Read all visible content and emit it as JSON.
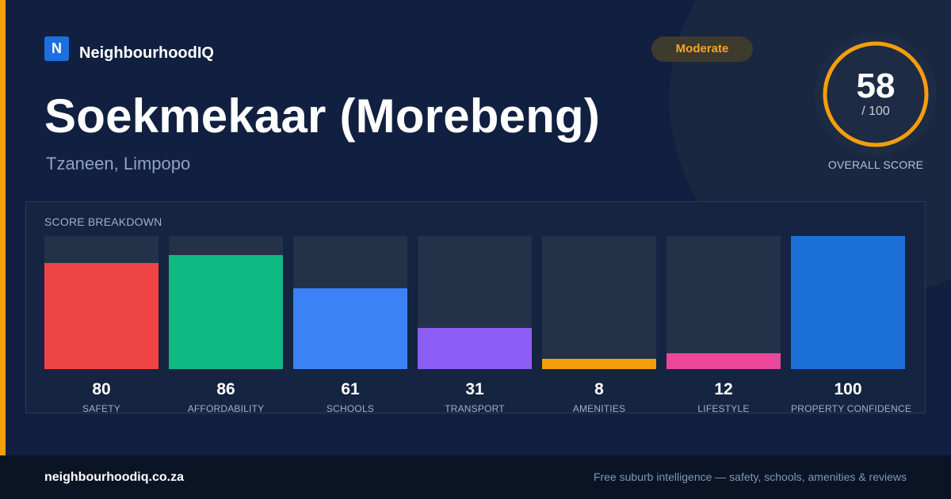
{
  "brand": {
    "logo_letter": "N",
    "name": "NeighbourhoodIQ"
  },
  "location": {
    "title": "Soekmekaar (Morebeng)",
    "subtitle": "Tzaneen, Limpopo"
  },
  "badge": {
    "label": "Moderate",
    "color": "#f5a524"
  },
  "overall_score": {
    "value": "58",
    "denominator": "/ 100",
    "label": "OVERALL SCORE",
    "ring_color": "#f59e0b",
    "fraction": 0.58
  },
  "breakdown": {
    "title": "SCORE BREAKDOWN",
    "items": [
      {
        "value": "80",
        "label": "SAFETY",
        "color": "#ef4444",
        "fraction": 0.8
      },
      {
        "value": "86",
        "label": "AFFORDABILITY",
        "color": "#10b981",
        "fraction": 0.86
      },
      {
        "value": "61",
        "label": "SCHOOLS",
        "color": "#3b82f6",
        "fraction": 0.61
      },
      {
        "value": "31",
        "label": "TRANSPORT",
        "color": "#8b5cf6",
        "fraction": 0.31
      },
      {
        "value": "8",
        "label": "AMENITIES",
        "color": "#f59e0b",
        "fraction": 0.08
      },
      {
        "value": "12",
        "label": "LIFESTYLE",
        "color": "#ec4899",
        "fraction": 0.12
      },
      {
        "value": "100",
        "label": "PROPERTY CONFIDENCE",
        "color": "#1d6fd8",
        "fraction": 1.0
      }
    ]
  },
  "footer": {
    "url": "neighbourhoodiq.co.za",
    "tagline": "Free suburb intelligence — safety, schools, amenities & reviews"
  }
}
